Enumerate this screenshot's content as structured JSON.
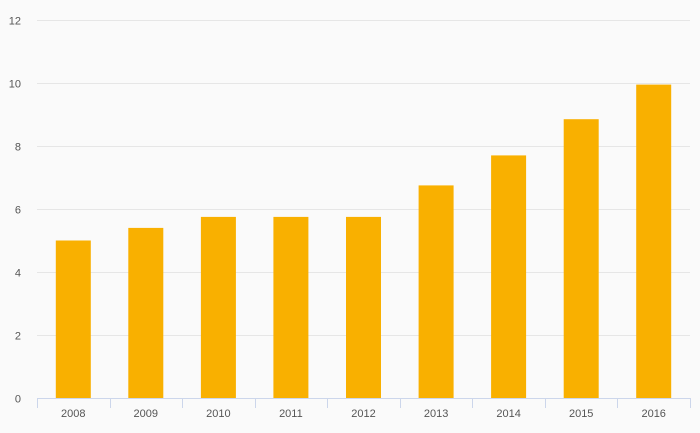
{
  "chart_data": {
    "type": "bar",
    "title": "",
    "xlabel": "",
    "ylabel": "",
    "categories": [
      "2008",
      "2009",
      "2010",
      "2011",
      "2012",
      "2013",
      "2014",
      "2015",
      "2016"
    ],
    "values": [
      5.0,
      5.4,
      5.75,
      5.75,
      5.75,
      6.75,
      7.7,
      8.85,
      9.95
    ],
    "ylim": [
      0,
      12
    ],
    "yticks": [
      0,
      2,
      4,
      6,
      8,
      10,
      12
    ],
    "grid": true,
    "legend": "none",
    "colors": {
      "bar": "#f9b000",
      "grid": "#e6e6e6",
      "axis": "#ccd6eb",
      "text": "#555555",
      "background": "#fafafa"
    }
  }
}
